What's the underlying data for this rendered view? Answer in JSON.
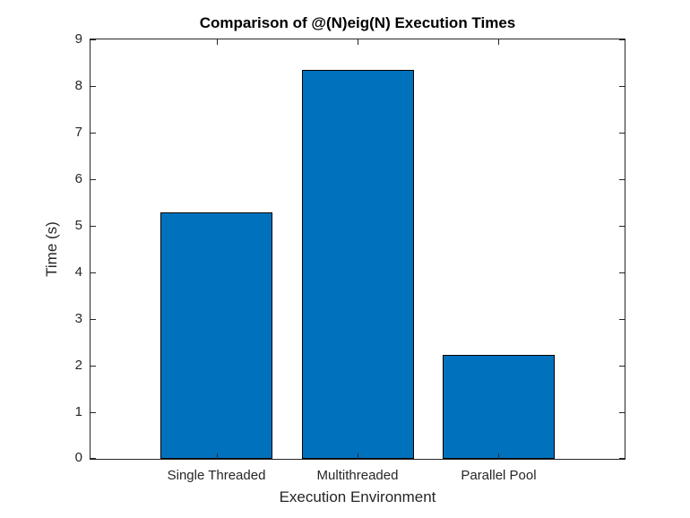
{
  "chart_data": {
    "type": "bar",
    "title": "Comparison of @(N)eig(N) Execution Times",
    "xlabel": "Execution Environment",
    "ylabel": "Time (s)",
    "categories": [
      "Single Threaded",
      "Multithreaded",
      "Parallel Pool"
    ],
    "values": [
      5.29,
      8.34,
      2.24
    ],
    "ylim": [
      0,
      9
    ],
    "yticks": [
      0,
      1,
      2,
      3,
      4,
      5,
      6,
      7,
      8,
      9
    ],
    "bar_color": "#0072BD",
    "bar_edge_color": "#000000",
    "axis_color": "#262626",
    "grid": false,
    "legend": null
  }
}
